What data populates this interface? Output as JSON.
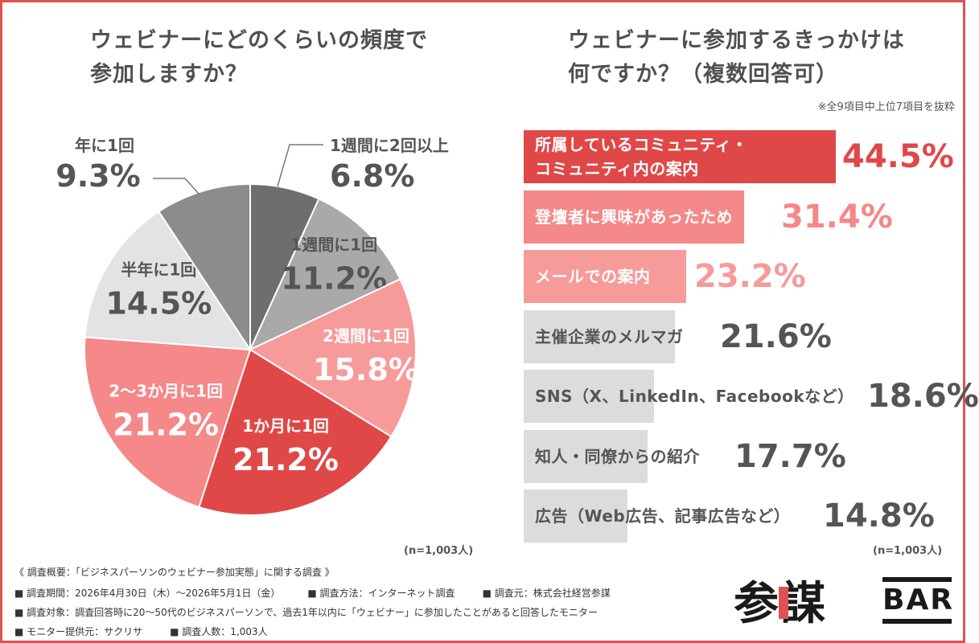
{
  "pie_chart": {
    "title_lines": [
      "ウェビナーにどのくらいの頻度で",
      "参加しますか？"
    ],
    "n_label": "(n=1,003人)",
    "chart_data": {
      "type": "pie",
      "title": "ウェビナーにどのくらいの頻度で参加しますか？",
      "unit": "%",
      "slices": [
        {
          "name": "1週間に2回以上",
          "value": 6.8,
          "display": "6.8%",
          "color": "#6e6e6e"
        },
        {
          "name": "1週間に1回",
          "value": 11.2,
          "display": "11.2%",
          "color": "#a9a9a9"
        },
        {
          "name": "2週間に1回",
          "value": 15.8,
          "display": "15.8%",
          "color": "#f79a9a"
        },
        {
          "name": "1か月に1回",
          "value": 21.2,
          "display": "21.2%",
          "color": "#e04848"
        },
        {
          "name": "2〜3か月に1回",
          "value": 21.2,
          "display": "21.2%",
          "color": "#f58888"
        },
        {
          "name": "半年に1回",
          "value": 14.5,
          "display": "14.5%",
          "color": "#e3e3e6"
        },
        {
          "name": "年に1回",
          "value": 9.3,
          "display": "9.3%",
          "color": "#8c8c8c"
        }
      ]
    }
  },
  "bar_chart": {
    "title_lines": [
      "ウェビナーに参加するきっかけは",
      "何ですか？（複数回答可）"
    ],
    "note": "※全9項目中上位7項目を抜粋",
    "n_label": "(n=1,003人)",
    "chart_data": {
      "type": "bar",
      "orientation": "horizontal",
      "title": "ウェビナーに参加するきっかけは何ですか？（複数回答可）",
      "unit": "%",
      "xlim": [
        0,
        100
      ],
      "bars": [
        {
          "label": "所属しているコミュニティ・\nコミュニティ内の案内",
          "value": 44.5,
          "display": "44.5%",
          "color": "#e04848",
          "text_color": "#ffffff",
          "value_color": "#e04848"
        },
        {
          "label": "登壇者に興味があったため",
          "value": 31.4,
          "display": "31.4%",
          "color": "#f58888",
          "text_color": "#ffffff",
          "value_color": "#f58888"
        },
        {
          "label": "メールでの案内",
          "value": 23.2,
          "display": "23.2%",
          "color": "#f79a9a",
          "text_color": "#ffffff",
          "value_color": "#f79a9a"
        },
        {
          "label": "主催企業のメルマガ",
          "value": 21.6,
          "display": "21.6%",
          "color": "#dcdcdc",
          "text_color": "#555555",
          "value_color": "#555555"
        },
        {
          "label": "SNS（X、LinkedIn、Facebookなど）",
          "value": 18.6,
          "display": "18.6%",
          "color": "#dcdcdc",
          "text_color": "#555555",
          "value_color": "#555555"
        },
        {
          "label": "知人・同僚からの紹介",
          "value": 17.7,
          "display": "17.7%",
          "color": "#dcdcdc",
          "text_color": "#555555",
          "value_color": "#555555"
        },
        {
          "label": "広告（Web広告、記事広告など）",
          "value": 14.8,
          "display": "14.8%",
          "color": "#dcdcdc",
          "text_color": "#555555",
          "value_color": "#555555"
        }
      ]
    }
  },
  "footer": {
    "heading": "《 調査概要：「ビジネスパーソンのウェビナー参加実態」に関する調査 》",
    "period": "■ 調査期間：2026年4月30日（木）〜2026年5月1日（金）",
    "method": "■ 調査方法：インターネット調査",
    "source": "■ 調査元：株式会社経営参謀",
    "target": "■ 調査対象：調査回答時に20〜50代のビジネスパーソンで、過去1年以内に「ウェビナー」に参加したことがあると回答したモニター",
    "monitor": "■ モニター提供元：サクリサ",
    "count": "■ 調査人数：1,003人"
  },
  "logo": {
    "kanji": "参謀",
    "bar": "BAR"
  },
  "colors": {
    "frame": "#e05252",
    "red": "#e04848",
    "pink": "#f58888",
    "light_pink": "#f79a9a",
    "gray_bar": "#dcdcdc",
    "text": "#555555"
  }
}
